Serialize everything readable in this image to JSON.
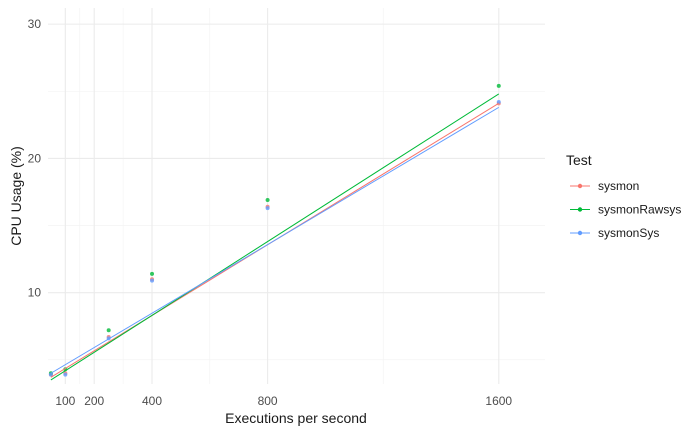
{
  "chart_data": {
    "type": "scatter",
    "xlabel": "Executions per second",
    "ylabel": "CPU Usage (%)",
    "xlim": [
      40,
      1760
    ],
    "ylim": [
      3.2,
      31.2
    ],
    "x_ticks": [
      100,
      200,
      400,
      800,
      1600
    ],
    "y_ticks": [
      10,
      20,
      30
    ],
    "grid": true,
    "legend": {
      "title": "Test",
      "position": "right"
    },
    "series": [
      {
        "name": "sysmon",
        "color": "#F8766D",
        "points": [
          [
            50,
            3.9
          ],
          [
            100,
            4.0
          ],
          [
            250,
            6.7
          ],
          [
            400,
            11.0
          ],
          [
            800,
            16.4
          ],
          [
            1600,
            24.1
          ]
        ],
        "fit": [
          [
            50,
            3.7
          ],
          [
            1600,
            24.1
          ]
        ]
      },
      {
        "name": "sysmonRawsys",
        "color": "#00BA38",
        "points": [
          [
            50,
            4.0
          ],
          [
            100,
            4.3
          ],
          [
            250,
            7.2
          ],
          [
            400,
            11.4
          ],
          [
            800,
            16.9
          ],
          [
            1600,
            25.4
          ]
        ],
        "fit": [
          [
            50,
            3.5
          ],
          [
            1600,
            24.8
          ]
        ]
      },
      {
        "name": "sysmonSys",
        "color": "#619CFF",
        "points": [
          [
            50,
            3.9
          ],
          [
            100,
            3.9
          ],
          [
            250,
            6.6
          ],
          [
            400,
            10.9
          ],
          [
            800,
            16.3
          ],
          [
            1600,
            24.2
          ]
        ],
        "fit": [
          [
            50,
            4.0
          ],
          [
            1600,
            23.8
          ]
        ]
      }
    ]
  }
}
